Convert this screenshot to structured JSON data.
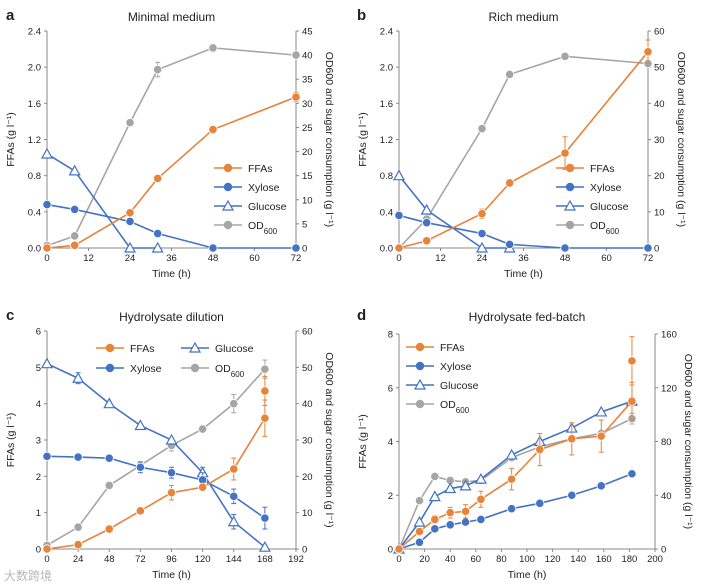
{
  "watermark": "大数跨境",
  "colors": {
    "ffa": "#E8833A",
    "xylose": "#4472C4",
    "glucose": "#4472C4",
    "od": "#A5A5A5"
  },
  "chart_data": [
    {
      "type": "line",
      "letter": "a",
      "title": "Minimal medium",
      "xlabel": "Time (h)",
      "ylabel": "FFAs (g l⁻¹)",
      "y2label": "OD600 and sugar consumption (g l⁻¹)",
      "xlim": [
        0,
        72
      ],
      "xticks": [
        0,
        12,
        24,
        36,
        48,
        60,
        72
      ],
      "ylim": [
        0,
        2.4
      ],
      "yticks": [
        0,
        0.4,
        0.8,
        1.2,
        1.6,
        2.0,
        2.4
      ],
      "y2lim": [
        0,
        45
      ],
      "y2ticks": [
        0,
        5,
        10,
        15,
        20,
        25,
        30,
        35,
        40,
        45
      ],
      "legend_position": "right",
      "legend_order": [
        "FFAs",
        "Xylose",
        "Glucose",
        "OD600"
      ],
      "series": [
        {
          "name": "FFAs",
          "axis": "left",
          "marker": "circle",
          "color": "#E8833A",
          "x": [
            0,
            8,
            24,
            32,
            48,
            72
          ],
          "y": [
            0,
            0.03,
            0.39,
            0.77,
            1.31,
            1.67
          ],
          "err": [
            0,
            0,
            0,
            0,
            0,
            0.05
          ]
        },
        {
          "name": "Xylose",
          "axis": "right",
          "marker": "circle",
          "color": "#4472C4",
          "x": [
            0,
            8,
            24,
            32,
            48,
            72
          ],
          "y": [
            9,
            8,
            5.5,
            3,
            0,
            0
          ],
          "err": [
            0,
            0,
            0,
            0,
            0,
            0
          ]
        },
        {
          "name": "Glucose",
          "axis": "right",
          "marker": "triangle",
          "color": "#4472C4",
          "x": [
            0,
            8,
            24,
            32
          ],
          "y": [
            19.5,
            16,
            0,
            0
          ],
          "err": [
            0,
            0,
            0,
            0
          ]
        },
        {
          "name": "OD600",
          "axis": "right",
          "marker": "circle",
          "color": "#A5A5A5",
          "x": [
            0,
            8,
            24,
            32,
            48,
            72
          ],
          "y": [
            0.5,
            2.5,
            26,
            37,
            41.5,
            40
          ],
          "err": [
            0,
            0,
            0,
            1.5,
            0.8,
            0
          ]
        }
      ]
    },
    {
      "type": "line",
      "letter": "b",
      "title": "Rich medium",
      "xlabel": "Time (h)",
      "ylabel": "FFAs (g l⁻¹)",
      "y2label": "OD600 and sugar consumption (g l⁻¹)",
      "xlim": [
        0,
        72
      ],
      "xticks": [
        0,
        12,
        24,
        36,
        48,
        60,
        72
      ],
      "ylim": [
        0,
        2.4
      ],
      "yticks": [
        0,
        0.4,
        0.8,
        1.2,
        1.6,
        2.0,
        2.4
      ],
      "y2lim": [
        0,
        60
      ],
      "y2ticks": [
        0,
        10,
        20,
        30,
        40,
        50,
        60
      ],
      "legend_position": "right",
      "legend_order": [
        "FFAs",
        "Xylose",
        "Glucose",
        "OD600"
      ],
      "series": [
        {
          "name": "FFAs",
          "axis": "left",
          "marker": "circle",
          "color": "#E8833A",
          "x": [
            0,
            8,
            24,
            32,
            48,
            72
          ],
          "y": [
            0,
            0.08,
            0.38,
            0.72,
            1.05,
            2.17
          ],
          "err": [
            0,
            0,
            0.05,
            0.04,
            0.18,
            0.13
          ]
        },
        {
          "name": "Xylose",
          "axis": "right",
          "marker": "circle",
          "color": "#4472C4",
          "x": [
            0,
            8,
            24,
            32,
            48,
            72
          ],
          "y": [
            9,
            7,
            4,
            1,
            0,
            0
          ],
          "err": [
            0,
            0,
            0,
            0,
            0,
            0
          ]
        },
        {
          "name": "Glucose",
          "axis": "right",
          "marker": "triangle",
          "color": "#4472C4",
          "x": [
            0,
            8,
            24,
            32
          ],
          "y": [
            20,
            10.5,
            0,
            0
          ],
          "err": [
            0,
            0,
            0,
            0
          ]
        },
        {
          "name": "OD600",
          "axis": "right",
          "marker": "circle",
          "color": "#A5A5A5",
          "x": [
            0,
            8,
            24,
            32,
            48,
            72
          ],
          "y": [
            0,
            8,
            33,
            48,
            53,
            51
          ],
          "err": [
            0,
            0,
            0,
            0,
            0,
            0
          ]
        }
      ]
    },
    {
      "type": "line",
      "letter": "c",
      "title": "Hydrolysate dilution",
      "xlabel": "Time (h)",
      "ylabel": "FFAs (g l⁻¹)",
      "y2label": "OD600 and sugar consumption (g l⁻¹)",
      "xlim": [
        0,
        192
      ],
      "xticks": [
        0,
        24,
        48,
        72,
        96,
        120,
        144,
        168,
        192
      ],
      "ylim": [
        0,
        6
      ],
      "yticks": [
        0,
        1,
        2,
        3,
        4,
        5,
        6
      ],
      "y2lim": [
        0,
        60
      ],
      "y2ticks": [
        0,
        10,
        20,
        30,
        40,
        50,
        60
      ],
      "legend_position": "top",
      "legend_order": [
        "FFAs",
        "Glucose",
        "Xylose",
        "OD600"
      ],
      "series": [
        {
          "name": "FFAs",
          "axis": "left",
          "marker": "circle",
          "color": "#E8833A",
          "x": [
            0,
            24,
            48,
            72,
            96,
            120,
            144,
            168
          ],
          "y": [
            0,
            0.12,
            0.55,
            1.05,
            1.55,
            1.7,
            2.2,
            3.6
          ],
          "err": [
            0,
            0,
            0,
            0,
            0.2,
            0.1,
            0.3,
            0.5
          ]
        },
        {
          "name": "Glucose",
          "axis": "right",
          "marker": "triangle",
          "color": "#4472C4",
          "x": [
            0,
            24,
            48,
            72,
            96,
            120,
            144,
            168
          ],
          "y": [
            51,
            47,
            40,
            34,
            30,
            21,
            7.5,
            0.5
          ],
          "err": [
            0,
            1.5,
            0,
            0,
            0,
            1.5,
            2,
            0
          ]
        },
        {
          "name": "Xylose",
          "axis": "right",
          "marker": "circle",
          "color": "#4472C4",
          "x": [
            0,
            24,
            48,
            72,
            96,
            120,
            144,
            168
          ],
          "y": [
            25.5,
            25.3,
            25,
            22.5,
            21,
            19,
            14.5,
            8.5
          ],
          "err": [
            0,
            0,
            0,
            1.5,
            1.5,
            2,
            2,
            3
          ]
        },
        {
          "name": "OD600",
          "axis": "right",
          "marker": "circle",
          "color": "#A5A5A5",
          "x": [
            0,
            24,
            48,
            72,
            96,
            120,
            144,
            168
          ],
          "y": [
            1,
            6,
            17.5,
            23,
            28.5,
            33,
            40,
            49.5
          ],
          "err": [
            0,
            0,
            0,
            0,
            1.5,
            0,
            2.5,
            2.5
          ]
        },
        {
          "name": "FFAs-top",
          "axis": "left",
          "marker": "circle",
          "color": "#E8833A",
          "x": [
            168
          ],
          "y": [
            4.35
          ],
          "err": [
            0.4
          ]
        }
      ]
    },
    {
      "type": "line",
      "letter": "d",
      "title": "Hydrolysate fed-batch",
      "xlabel": "Time (h)",
      "ylabel": "FFAs (g l⁻¹)",
      "y2label": "OD600 and sugar consumption (g l⁻¹)",
      "xlim": [
        0,
        200
      ],
      "xticks": [
        0,
        20,
        40,
        60,
        80,
        100,
        120,
        140,
        160,
        180,
        200
      ],
      "ylim": [
        0,
        8
      ],
      "yticks": [
        0,
        2,
        4,
        6,
        8
      ],
      "y2lim": [
        0,
        160
      ],
      "y2ticks": [
        0,
        40,
        80,
        120,
        160
      ],
      "legend_position": "top-left",
      "legend_order": [
        "FFAs",
        "Xylose",
        "Glucose",
        "OD600"
      ],
      "series": [
        {
          "name": "FFAs",
          "axis": "left",
          "marker": "circle",
          "color": "#E8833A",
          "x": [
            0,
            16,
            28,
            40,
            52,
            64,
            88,
            110,
            135,
            158,
            182
          ],
          "y": [
            0,
            0.65,
            1.1,
            1.35,
            1.4,
            1.85,
            2.6,
            3.7,
            4.1,
            4.2,
            5.5
          ],
          "err": [
            0,
            0.1,
            0.15,
            0.2,
            0.25,
            0.3,
            0.4,
            0.6,
            0.6,
            0.6,
            0.7
          ]
        },
        {
          "name": "FFAs-top",
          "axis": "left",
          "marker": "circle",
          "color": "#E8833A",
          "x": [
            182
          ],
          "y": [
            7
          ],
          "err": [
            0.9
          ]
        },
        {
          "name": "Xylose",
          "axis": "right",
          "marker": "circle",
          "color": "#4472C4",
          "x": [
            0,
            16,
            28,
            40,
            52,
            64,
            88,
            110,
            135,
            158,
            182
          ],
          "y": [
            0,
            5,
            15,
            18,
            20,
            22,
            30,
            34,
            40,
            47,
            56
          ],
          "err": [
            0,
            0,
            0,
            0,
            0,
            0,
            0,
            0,
            0,
            0,
            0
          ]
        },
        {
          "name": "Glucose",
          "axis": "right",
          "marker": "triangle",
          "color": "#4472C4",
          "x": [
            0,
            16,
            28,
            40,
            52,
            64,
            88,
            110,
            135,
            158,
            182
          ],
          "y": [
            0,
            20,
            39,
            45,
            47,
            52,
            70,
            80,
            90,
            102,
            110
          ],
          "err": [
            0,
            0,
            0,
            0,
            0,
            0,
            0,
            0,
            0,
            0,
            0
          ]
        },
        {
          "name": "OD600",
          "axis": "right",
          "marker": "circle",
          "color": "#A5A5A5",
          "x": [
            0,
            16,
            28,
            40,
            52,
            64,
            88,
            110,
            135,
            158,
            182
          ],
          "y": [
            0,
            36,
            54,
            51,
            50,
            51,
            68,
            76,
            82,
            86,
            97
          ],
          "err": [
            0,
            0,
            0,
            0,
            0,
            0,
            0,
            0,
            0,
            0,
            4
          ]
        }
      ]
    }
  ]
}
